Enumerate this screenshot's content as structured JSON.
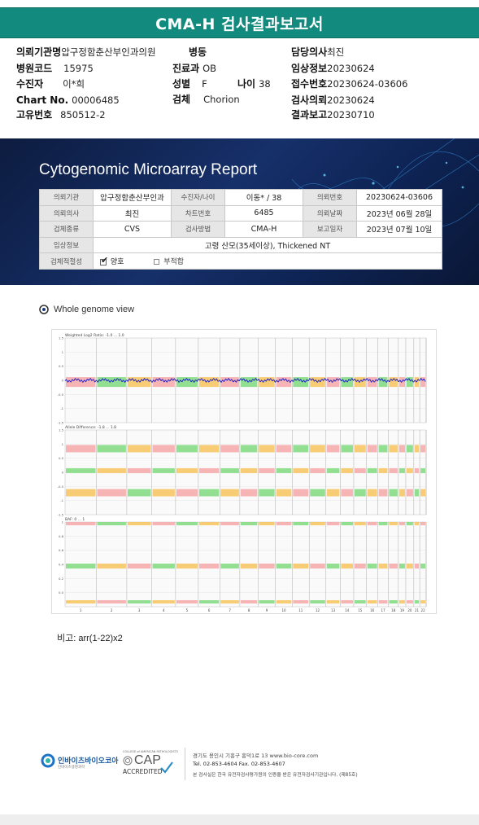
{
  "header": {
    "title": "CMA-H 검사결과보고서"
  },
  "patient_info": {
    "row1": [
      {
        "k": "의뢰기관명",
        "v": "압구정함춘산부인과의원"
      },
      {
        "k": "병동",
        "v": ""
      },
      {
        "k": "담당의사",
        "v": "최진"
      }
    ],
    "hospital_code": {
      "k": "병원코드",
      "v": "15975"
    },
    "dept": {
      "k": "진료과",
      "v": "OB"
    },
    "clinical_info": {
      "k": "임상정보",
      "v": "20230624"
    },
    "patient": {
      "k": "수진자",
      "v": "이*희"
    },
    "sex": {
      "k": "성별",
      "v": "F"
    },
    "age": {
      "k": "나이",
      "v": "38"
    },
    "receipt": {
      "k": "접수번호",
      "v": "20230624-03606"
    },
    "chart": {
      "k": "Chart No.",
      "v": "00006485"
    },
    "specimen": {
      "k": "검체",
      "v": "Chorion"
    },
    "request": {
      "k": "검사의뢰",
      "v": "20230624"
    },
    "unique": {
      "k": "고유번호",
      "v": "850512-2"
    },
    "report": {
      "k": "결과보고",
      "v": "20230710"
    }
  },
  "banner": {
    "title": "Cytogenomic Microarray Report"
  },
  "report_table": {
    "r1": [
      "의뢰기관",
      "압구정함춘산부인과",
      "수진자/나이",
      "이동* / 38",
      "의뢰번호",
      "20230624-03606"
    ],
    "r2": [
      "의뢰의사",
      "최진",
      "차트번호",
      "6485",
      "의뢰날짜",
      "2023년 06월 28일"
    ],
    "r3": [
      "검체종류",
      "CVS",
      "검사방법",
      "CMA-H",
      "보고일자",
      "2023년 07월 10일"
    ],
    "r4": [
      "임상정보",
      "고령 산모(35세이상), Thickened NT"
    ],
    "r5": [
      "검체적절성",
      "양호",
      "부적합"
    ]
  },
  "genome_view": {
    "title": "Whole genome view",
    "panel1_label": "Weighted Log2 Ratio: -1.0 ... 1.0",
    "panel2_label": "Allele Difference: -1.8 ... 1.8",
    "panel3_label": "BAF: 0 ... 1",
    "chromosomes": [
      "1",
      "2",
      "3",
      "4",
      "5",
      "6",
      "7",
      "8",
      "9",
      "10",
      "11",
      "12",
      "13",
      "14",
      "15",
      "16",
      "17",
      "18",
      "19",
      "20",
      "21",
      "22"
    ]
  },
  "note": {
    "text": "비고: arr(1-22)x2"
  },
  "footer": {
    "company": "인바이츠바이오코아",
    "company_sub": "인바이츠생명과학",
    "cap_top": "COLLEGE of AMERICAN PATHOLOGISTS",
    "cap": "CAP",
    "cap_sub": "ACCREDITED",
    "address": "경기도 용인시 기흥구 흥덕1로 13   www.bio-core.com",
    "tel": "Tel. 02-853-4604   Fax. 02-853-4607",
    "cert": "본 검사실은 한국 유전자검사평가원의 인증을 받은 유전자검사기관입니다. (제85호)"
  },
  "colors": {
    "teal": "#128a7e",
    "navy": "#0d1c3f",
    "red": "#f4a7a7",
    "green": "#7fd97f",
    "orange": "#f7c35c",
    "blue": "#1a1acc"
  }
}
